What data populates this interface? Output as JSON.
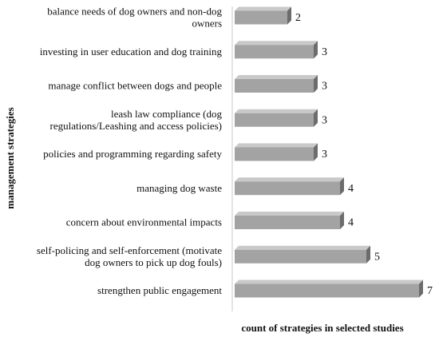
{
  "chart_data": {
    "type": "bar",
    "orientation": "horizontal",
    "categories": [
      "balance needs of dog owners and non-dog owners",
      "investing in user education and dog training",
      "manage conflict between dogs and people",
      "leash law compliance (dog regulations/Leashing and access policies)",
      "policies and programming regarding safety",
      "managing dog waste",
      "concern about environmental impacts",
      "self-policing and self-enforcement (motivate dog owners to pick up dog fouls)",
      "strengthen public engagement"
    ],
    "category_lines": [
      [
        "balance needs of dog owners and non-dog",
        "owners"
      ],
      [
        "investing in user education and dog training"
      ],
      [
        "manage conflict between dogs and people"
      ],
      [
        "leash law compliance (dog",
        "regulations/Leashing and access policies)"
      ],
      [
        "policies and programming regarding safety"
      ],
      [
        "managing dog waste"
      ],
      [
        "concern about environmental impacts"
      ],
      [
        "self-policing and self-enforcement (motivate",
        "dog owners to pick up dog fouls)"
      ],
      [
        "strengthen public engagement"
      ]
    ],
    "values": [
      2,
      3,
      3,
      3,
      3,
      4,
      4,
      5,
      7
    ],
    "xlabel": "count of strategies in selected studies",
    "ylabel": "management strategies",
    "xlim": [
      0,
      7
    ],
    "grid": false,
    "legend": "none",
    "colors": {
      "bar_front": "#a3a3a3",
      "bar_top": "#c9c9c9",
      "bar_side": "#6c6c6c",
      "axis": "#c8c8c8"
    }
  }
}
